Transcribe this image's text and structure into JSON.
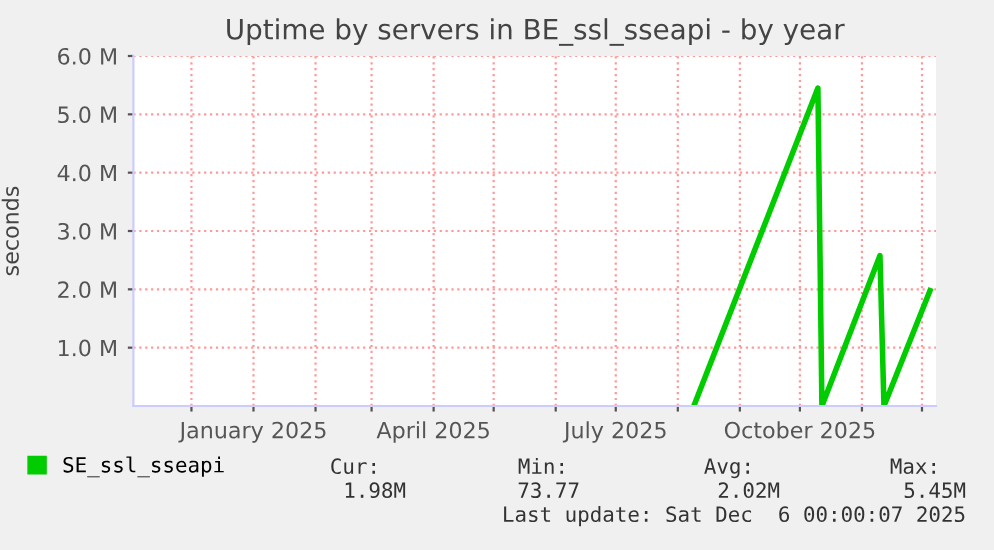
{
  "chart_data": {
    "type": "line",
    "title": "Uptime by servers in BE_ssl_sseapi - by year",
    "ylabel": "seconds",
    "series": [
      {
        "name": "SE_ssl_sseapi",
        "color": "#00cc00",
        "x": [
          "2025-08-09",
          "2025-10-10",
          "2025-10-12",
          "2025-11-10",
          "2025-11-12",
          "2025-12-05"
        ],
        "values": [
          0,
          5450000,
          0,
          2580000,
          0,
          1980000
        ]
      }
    ],
    "xlim": [
      "2024-11-02",
      "2025-12-08"
    ],
    "xticks": [
      {
        "value": "2024-12-01",
        "label": null
      },
      {
        "value": "2025-01-01",
        "label": "January 2025"
      },
      {
        "value": "2025-02-01",
        "label": null
      },
      {
        "value": "2025-03-01",
        "label": null
      },
      {
        "value": "2025-04-01",
        "label": "April 2025"
      },
      {
        "value": "2025-05-01",
        "label": null
      },
      {
        "value": "2025-06-01",
        "label": null
      },
      {
        "value": "2025-07-01",
        "label": "July 2025"
      },
      {
        "value": "2025-08-01",
        "label": null
      },
      {
        "value": "2025-09-01",
        "label": null
      },
      {
        "value": "2025-10-01",
        "label": "October 2025"
      },
      {
        "value": "2025-11-01",
        "label": null
      },
      {
        "value": "2025-12-01",
        "label": null
      }
    ],
    "ylim": [
      0,
      6000000
    ],
    "yticks": [
      {
        "value": 1000000,
        "label": "1.0 M"
      },
      {
        "value": 2000000,
        "label": "2.0 M"
      },
      {
        "value": 3000000,
        "label": "3.0 M"
      },
      {
        "value": 4000000,
        "label": "4.0 M"
      },
      {
        "value": 5000000,
        "label": "5.0 M"
      },
      {
        "value": 6000000,
        "label": "6.0 M"
      }
    ],
    "grid": true,
    "legend": "bottom",
    "annotations": [
      "Cur:",
      "1.98M",
      "Min:",
      "73.77",
      "Avg:",
      "2.02M",
      "Max:",
      "5.45M",
      "Last update: Sat Dec  6 00:00:07 2025"
    ]
  }
}
